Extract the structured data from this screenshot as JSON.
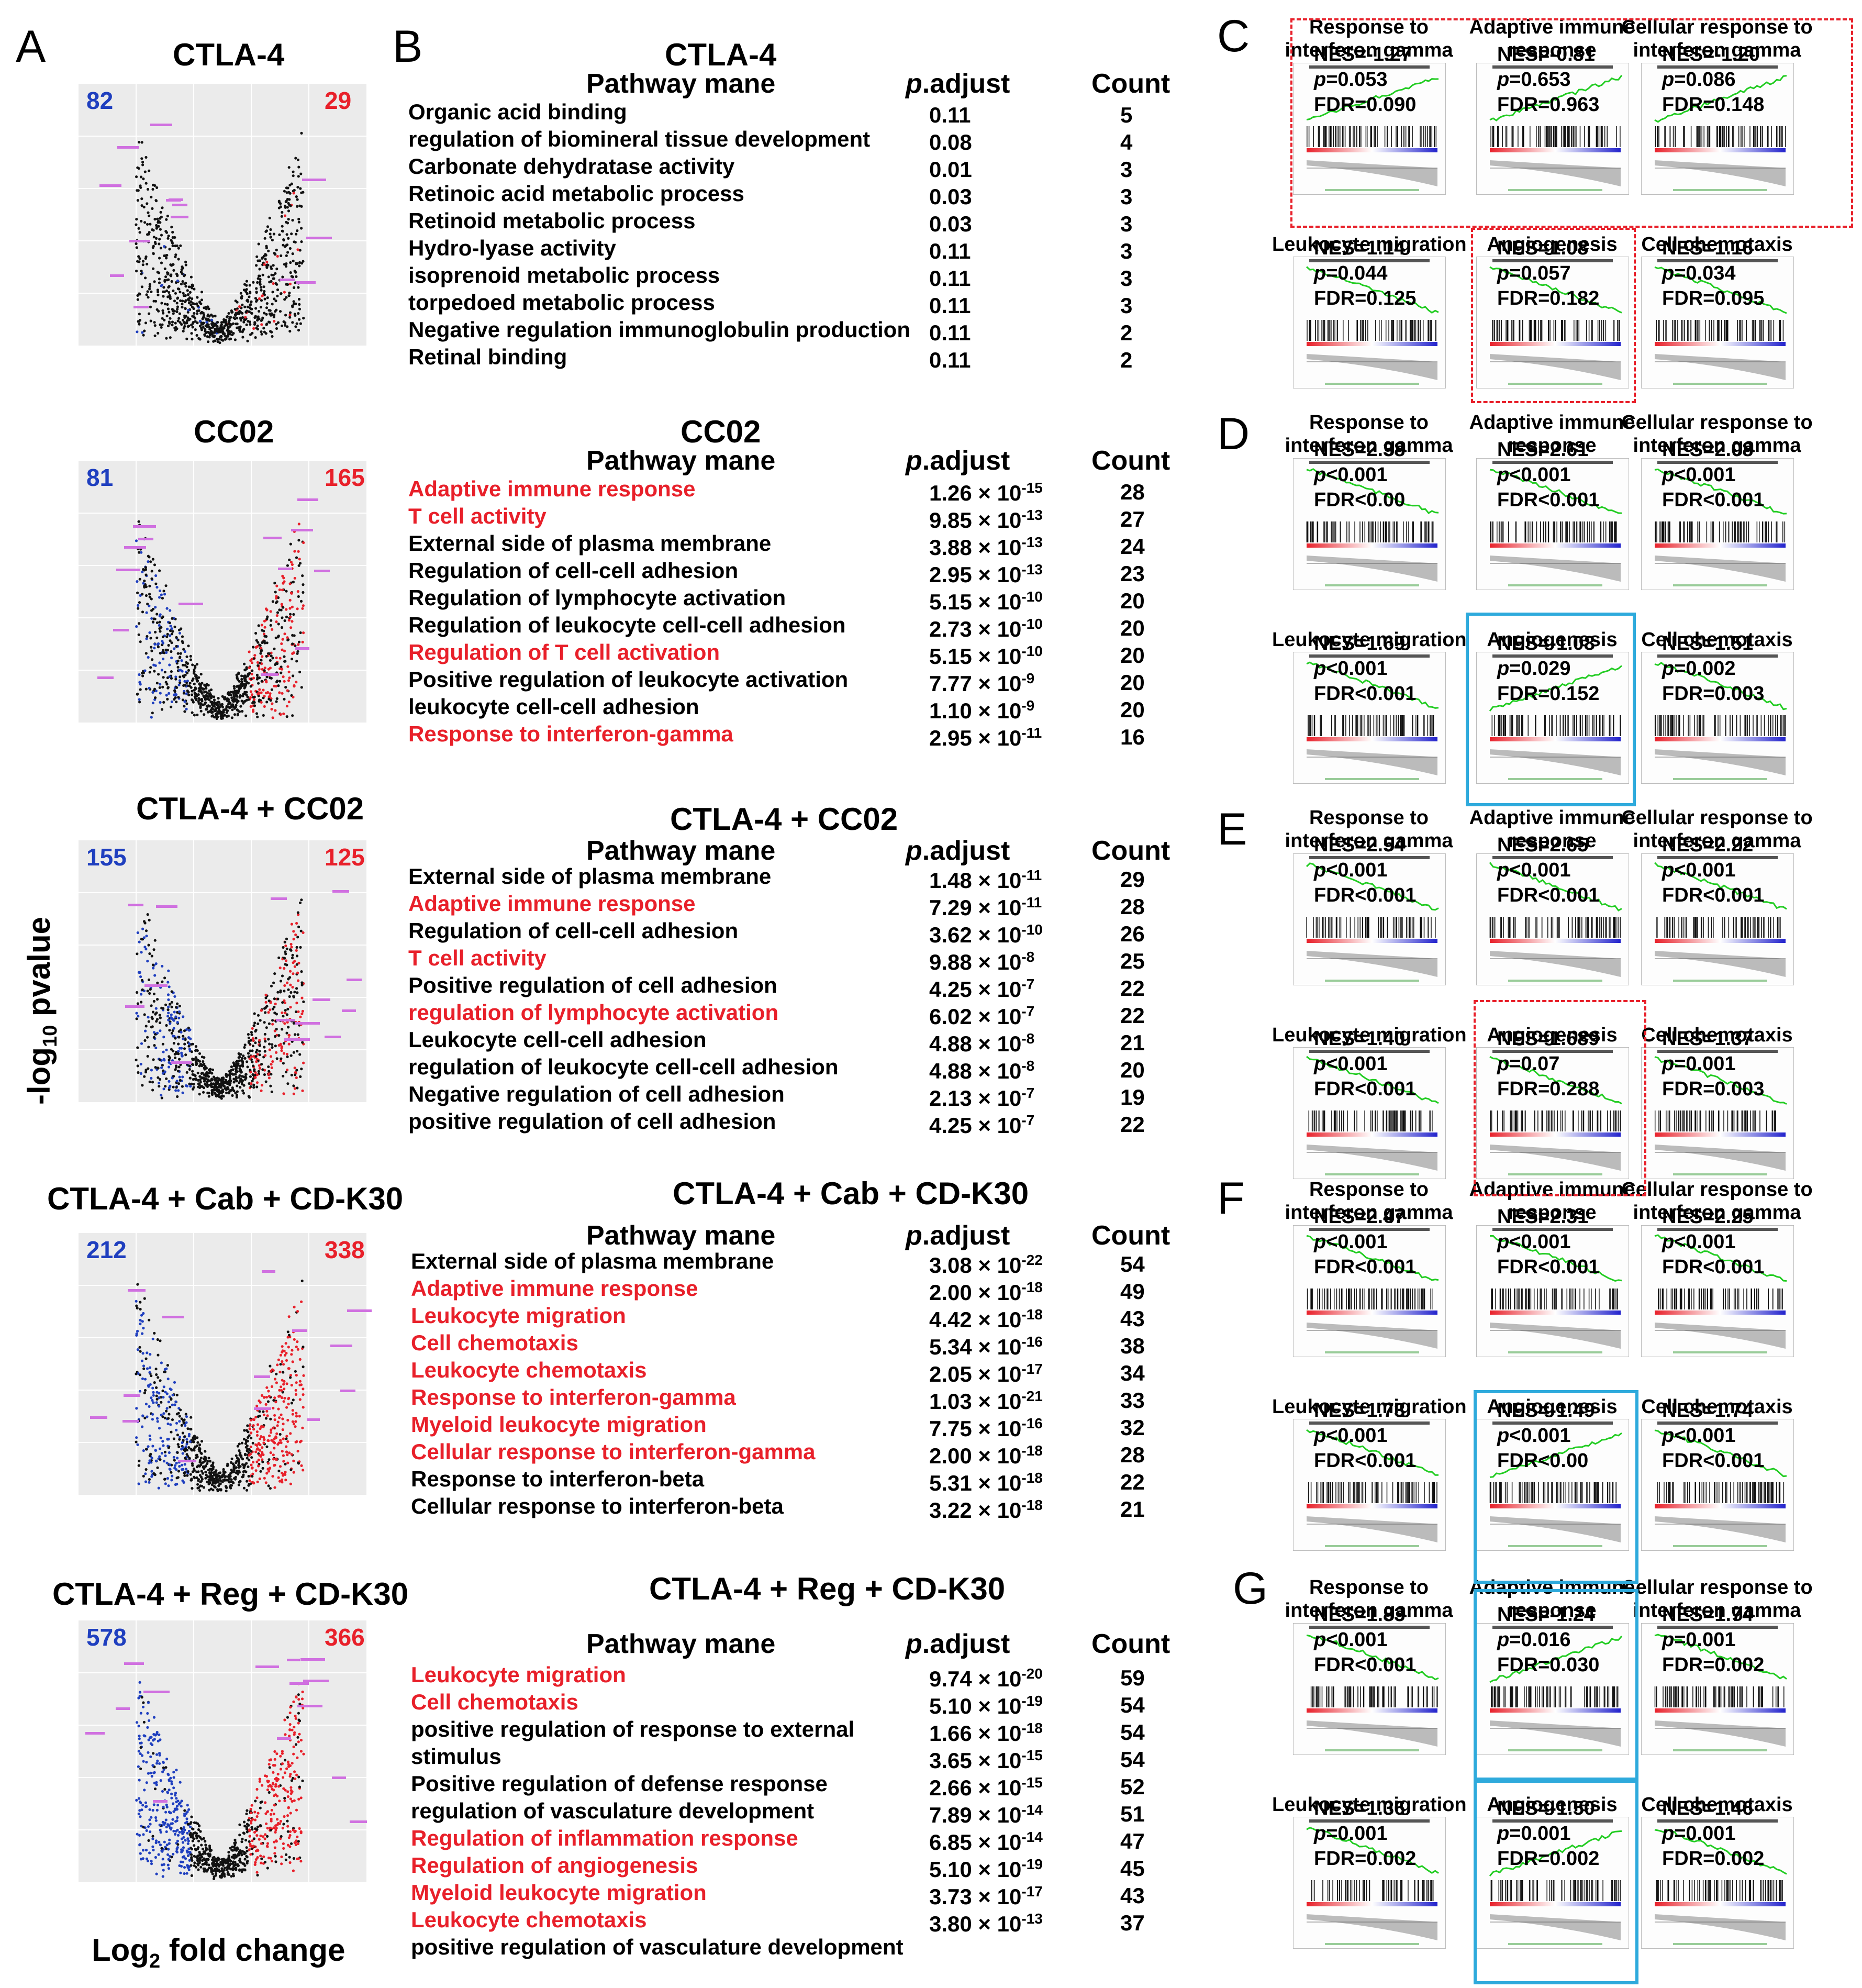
{
  "panel_letters": {
    "A": "A",
    "B": "B",
    "C": "C",
    "D": "D",
    "E": "E",
    "F": "F",
    "G": "G"
  },
  "panelA": {
    "y_axis_label": "-log",
    "y_axis_sub": "10",
    "y_axis_rest": " pvalue",
    "x_axis_label": "Log",
    "x_axis_sub": "2",
    "x_axis_rest": " fold change",
    "plots": [
      {
        "title": "CTLA-4",
        "down": "82",
        "up": "29"
      },
      {
        "title": "CC02",
        "down": "81",
        "up": "165"
      },
      {
        "title": "CTLA-4 + CC02",
        "down": "155",
        "up": "125"
      },
      {
        "title": "CTLA-4 + Cab + CD-K30",
        "down": "212",
        "up": "338"
      },
      {
        "title": "CTLA-4 + Reg + CD-K30",
        "down": "578",
        "up": "366"
      }
    ]
  },
  "panelB": {
    "col_pathway": "Pathway mane",
    "col_padj_p": "p",
    "col_padj_rest": ".adjust",
    "col_count": "Count",
    "tables": [
      {
        "title": "CTLA-4",
        "rows": [
          {
            "name": "Organic acid binding",
            "padj": "0.11",
            "count": "5",
            "red": false
          },
          {
            "name": "regulation of biomineral tissue development",
            "padj": "0.08",
            "count": "4",
            "red": false
          },
          {
            "name": "Carbonate dehydratase activity",
            "padj": "0.01",
            "count": "3",
            "red": false
          },
          {
            "name": "Retinoic acid metabolic process",
            "padj": "0.03",
            "count": "3",
            "red": false
          },
          {
            "name": "Retinoid metabolic process",
            "padj": "0.03",
            "count": "3",
            "red": false
          },
          {
            "name": "Hydro-lyase activity",
            "padj": "0.11",
            "count": "3",
            "red": false
          },
          {
            "name": "isoprenoid metabolic process",
            "padj": "0.11",
            "count": "3",
            "red": false
          },
          {
            "name": "torpedoed metabolic process",
            "padj": "0.11",
            "count": "3",
            "red": false
          },
          {
            "name": "Negative regulation immunoglobulin production",
            "padj": "0.11",
            "count": "2",
            "red": false
          },
          {
            "name": "Retinal binding",
            "padj": "0.11",
            "count": "2",
            "red": false
          }
        ]
      },
      {
        "title": "CC02",
        "rows": [
          {
            "name": "Adaptive immune response",
            "padj": "1.26 × 10",
            "exp": "-15",
            "count": "28",
            "red": true
          },
          {
            "name": "T cell activity",
            "padj": "9.85 × 10",
            "exp": "-13",
            "count": "27",
            "red": true
          },
          {
            "name": "External side of plasma membrane",
            "padj": "3.88 × 10",
            "exp": "-13",
            "count": "24",
            "red": false
          },
          {
            "name": "Regulation of cell-cell adhesion",
            "padj": "2.95 × 10",
            "exp": "-13",
            "count": "23",
            "red": false
          },
          {
            "name": "Regulation of lymphocyte activation",
            "padj": "5.15 × 10",
            "exp": "-10",
            "count": "20",
            "red": false
          },
          {
            "name": "Regulation of leukocyte cell-cell adhesion",
            "padj": "2.73 × 10",
            "exp": "-10",
            "count": "20",
            "red": false
          },
          {
            "name": "Regulation of T cell activation",
            "padj": "5.15 × 10",
            "exp": "-10",
            "count": "20",
            "red": true
          },
          {
            "name": "Positive regulation of leukocyte activation",
            "padj": "7.77 × 10",
            "exp": "-9",
            "count": "20",
            "red": false
          },
          {
            "name": "leukocyte cell-cell adhesion",
            "padj": "1.10 × 10",
            "exp": "-9",
            "count": "20",
            "red": false
          },
          {
            "name": "Response to interferon-gamma",
            "padj": "2.95 × 10",
            "exp": "-11",
            "count": "16",
            "red": true
          }
        ]
      },
      {
        "title": "CTLA-4 + CC02",
        "rows": [
          {
            "name": "External side of plasma membrane",
            "padj": "1.48 × 10",
            "exp": "-11",
            "count": "29",
            "red": false
          },
          {
            "name": "Adaptive immune response",
            "padj": "7.29 × 10",
            "exp": "-11",
            "count": "28",
            "red": true
          },
          {
            "name": "Regulation of cell-cell adhesion",
            "padj": "3.62 × 10",
            "exp": "-10",
            "count": "26",
            "red": false
          },
          {
            "name": "T cell activity",
            "padj": "9.88 × 10",
            "exp": "-8",
            "count": "25",
            "red": true
          },
          {
            "name": "Positive regulation of cell adhesion",
            "padj": "4.25 × 10",
            "exp": "-7",
            "count": "22",
            "red": false
          },
          {
            "name": "regulation of lymphocyte activation",
            "padj": "6.02 × 10",
            "exp": "-7",
            "count": "22",
            "red": true
          },
          {
            "name": "Leukocyte cell-cell adhesion",
            "padj": "4.88 × 10",
            "exp": "-8",
            "count": "21",
            "red": false
          },
          {
            "name": "regulation of leukocyte cell-cell adhesion",
            "padj": "4.88 × 10",
            "exp": "-8",
            "count": "20",
            "red": false
          },
          {
            "name": "Negative regulation of cell adhesion",
            "padj": "2.13 × 10",
            "exp": "-7",
            "count": "19",
            "red": false
          },
          {
            "name": "positive regulation of cell adhesion",
            "padj": "4.25 × 10",
            "exp": "-7",
            "count": "22",
            "red": false
          }
        ]
      },
      {
        "title": "CTLA-4 + Cab + CD-K30",
        "rows": [
          {
            "name": "External side of plasma membrane",
            "padj": "3.08 × 10",
            "exp": "-22",
            "count": "54",
            "red": false
          },
          {
            "name": "Adaptive immune response",
            "padj": "2.00 × 10",
            "exp": "-18",
            "count": "49",
            "red": true
          },
          {
            "name": "Leukocyte migration",
            "padj": "4.42 × 10",
            "exp": "-18",
            "count": "43",
            "red": true
          },
          {
            "name": "Cell chemotaxis",
            "padj": "5.34 × 10",
            "exp": "-16",
            "count": "38",
            "red": true
          },
          {
            "name": "Leukocyte chemotaxis",
            "padj": "2.05 × 10",
            "exp": "-17",
            "count": "34",
            "red": true
          },
          {
            "name": "Response to interferon-gamma",
            "padj": "1.03 × 10",
            "exp": "-21",
            "count": "33",
            "red": true
          },
          {
            "name": "Myeloid leukocyte migration",
            "padj": "7.75 × 10",
            "exp": "-16",
            "count": "32",
            "red": true
          },
          {
            "name": "Cellular response to  interferon-gamma",
            "padj": "2.00 × 10",
            "exp": "-18",
            "count": "28",
            "red": true
          },
          {
            "name": "Response to interferon-beta",
            "padj": "5.31 × 10",
            "exp": "-18",
            "count": "22",
            "red": false
          },
          {
            "name": "Cellular response to interferon-beta",
            "padj": "3.22 × 10",
            "exp": "-18",
            "count": "21",
            "red": false
          }
        ]
      },
      {
        "title": "CTLA-4 + Reg + CD-K30",
        "rows": [
          {
            "name": "Leukocyte migration",
            "padj": "9.74 × 10",
            "exp": "-20",
            "count": "59",
            "red": true
          },
          {
            "name": "Cell chemotaxis",
            "padj": "5.10 × 10",
            "exp": "-19",
            "count": "54",
            "red": true
          },
          {
            "name": "positive regulation of response to external",
            "padj": "1.66 × 10",
            "exp": "-18",
            "count": "54",
            "red": false
          },
          {
            "name": "stimulus",
            "padj": "3.65 × 10",
            "exp": "-15",
            "count": "54",
            "red": false
          },
          {
            "name": "Positive regulation of defense response",
            "padj": "2.66 × 10",
            "exp": "-15",
            "count": "52",
            "red": false
          },
          {
            "name": "regulation of vasculature development",
            "padj": "7.89 × 10",
            "exp": "-14",
            "count": "51",
            "red": false
          },
          {
            "name": "Regulation of inflammation response",
            "padj": "6.85 × 10",
            "exp": "-14",
            "count": "47",
            "red": true
          },
          {
            "name": "Regulation of angiogenesis",
            "padj": "5.10 × 10",
            "exp": "-19",
            "count": "45",
            "red": true
          },
          {
            "name": "Myeloid leukocyte migration",
            "padj": "3.73 × 10",
            "exp": "-17",
            "count": "43",
            "red": true
          },
          {
            "name": "Leukocyte chemotaxis",
            "padj": "3.80 × 10",
            "exp": "-13",
            "count": "37",
            "red": true
          },
          {
            "name": "positive regulation of vasculature development",
            "padj": "",
            "exp": "",
            "count": "",
            "red": false
          }
        ]
      }
    ]
  },
  "gsea": {
    "labels": {
      "ifn": [
        "Response to",
        "interferon gamma"
      ],
      "adaptive": [
        "Adaptive immune",
        "response"
      ],
      "cellular": [
        "Cellular response to",
        "interferon gamma"
      ],
      "leuk": [
        "Leukocyte migration"
      ],
      "angio": [
        "Angiogenesis"
      ],
      "chemo": [
        "Cell chemotaxis"
      ]
    },
    "panels": [
      {
        "letter": "C",
        "plots": [
          {
            "nes": "NES=-1.27",
            "p": "=0.053",
            "fdr": "FDR=0.090",
            "trend": "up"
          },
          {
            "nes": "NES=-0.81",
            "p": "=0.653",
            "fdr": "FDR=0.963",
            "trend": "up"
          },
          {
            "nes": "NES=-1.20",
            "p": "=0.086",
            "fdr": "FDR=0.148",
            "trend": "up"
          },
          {
            "nes": "NES=1.14",
            "p": "=0.044",
            "fdr": "FDR=0.125",
            "trend": "down"
          },
          {
            "nes": "NES=1.08",
            "p": "=0.057",
            "fdr": "FDR=0.182",
            "trend": "down"
          },
          {
            "nes": "NES=1.16",
            "p": "=0.034",
            "fdr": "FDR=0.095",
            "trend": "down"
          }
        ]
      },
      {
        "letter": "D",
        "plots": [
          {
            "nes": "NES=2.38",
            "p": "<0.001",
            "fdr": "FDR<0.00",
            "trend": "down"
          },
          {
            "nes": "NES=2.61",
            "p": "<0.001",
            "fdr": "FDR<0.001",
            "trend": "down"
          },
          {
            "nes": "NES=2.08",
            "p": "<0.001",
            "fdr": "FDR<0.001",
            "trend": "down"
          },
          {
            "nes": "NES=1.69",
            "p": "<0.001",
            "fdr": "FDR<0.001",
            "trend": "down"
          },
          {
            "nes": "NES=-1.08",
            "p": "=0.029",
            "fdr": "FDR=0.152",
            "trend": "up"
          },
          {
            "nes": "NES=1.51",
            "p": "=0.002",
            "fdr": "FDR=0.003",
            "trend": "down"
          }
        ]
      },
      {
        "letter": "E",
        "plots": [
          {
            "nes": "NES=2.54",
            "p": "<0.001",
            "fdr": "FDR<0.001",
            "trend": "down"
          },
          {
            "nes": "NES=2.65",
            "p": "<0.001",
            "fdr": "FDR<0.001",
            "trend": "down"
          },
          {
            "nes": "NES=2.22",
            "p": "<0.001",
            "fdr": "FDR<0.001",
            "trend": "down"
          },
          {
            "nes": "NES=1.40",
            "p": "<0.001",
            "fdr": "FDR<0.001",
            "trend": "down"
          },
          {
            "nes": "NES=1.689",
            "p": "=0.07",
            "fdr": "FDR=0.288",
            "trend": "down"
          },
          {
            "nes": "NES=1.37",
            "p": "=0.001",
            "fdr": "FDR=0.003",
            "trend": "down"
          }
        ]
      },
      {
        "letter": "F",
        "plots": [
          {
            "nes": "NES=2.47",
            "p": "<0.001",
            "fdr": "FDR<0.001",
            "trend": "down"
          },
          {
            "nes": "NES=2.31",
            "p": "<0.001",
            "fdr": "FDR<0.001",
            "trend": "down"
          },
          {
            "nes": "NES=2.25",
            "p": "<0.001",
            "fdr": "FDR<0.001",
            "trend": "down"
          },
          {
            "nes": "NES=1.73",
            "p": "<0.001",
            "fdr": "FDR<0.001",
            "trend": "down"
          },
          {
            "nes": "NES=-1.49",
            "p": "<0.001",
            "fdr": "FDR<0.00",
            "trend": "up"
          },
          {
            "nes": "NES=1.74",
            "p": "<0.001",
            "fdr": "FDR<0.001",
            "trend": "down"
          }
        ]
      },
      {
        "letter": "G",
        "plots": [
          {
            "nes": "NES=1.83",
            "p": "<0.001",
            "fdr": "FDR<0.001",
            "trend": "down"
          },
          {
            "nes": "NES=-1.24",
            "p": "=0.016",
            "fdr": "FDR=0.030",
            "trend": "up"
          },
          {
            "nes": "NES=1.74",
            "p": "=0.001",
            "fdr": "FDR=0.002",
            "trend": "down"
          },
          {
            "nes": "NES=1.36",
            "p": "=0.001",
            "fdr": "FDR=0.002",
            "trend": "down"
          },
          {
            "nes": "NES=-1.50",
            "p": "=0.001",
            "fdr": "FDR=0.002",
            "trend": "up"
          },
          {
            "nes": "NES=1.46",
            "p": "=0.001",
            "fdr": "FDR=0.002",
            "trend": "down"
          }
        ]
      }
    ]
  },
  "colors": {
    "down": "#1f3fbf",
    "up": "#e8202a",
    "highlight_red": "#e8202a",
    "highlight_blue": "#2eaadc",
    "enrich_line": "#22cc22"
  }
}
